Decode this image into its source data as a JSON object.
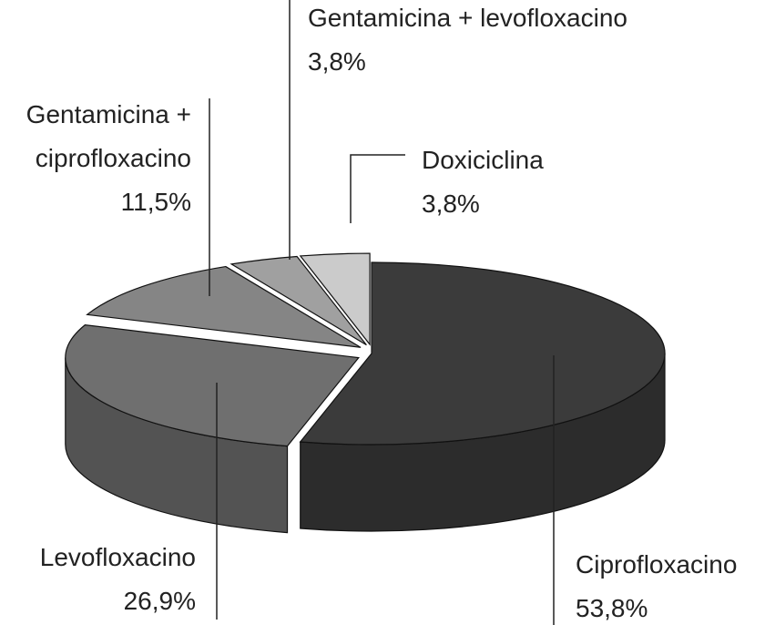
{
  "chart_data": {
    "type": "pie",
    "categories": [
      "Ciprofloxacino",
      "Levofloxacino",
      "Gentamicina + ciprofloxacino",
      "Gentamicina + levofloxacino",
      "Doxiciclina"
    ],
    "values": [
      53.8,
      26.9,
      11.5,
      3.8,
      3.8
    ],
    "value_labels": [
      "53,8%",
      "26,9%",
      "11,5%",
      "3,8%",
      "3,8%"
    ],
    "colors": [
      "#3b3b3b",
      "#6f6f6f",
      "#858585",
      "#a0a0a0",
      "#cbcbcb"
    ]
  }
}
